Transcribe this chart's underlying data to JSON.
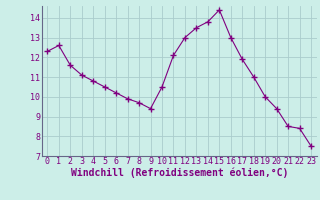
{
  "x": [
    0,
    1,
    2,
    3,
    4,
    5,
    6,
    7,
    8,
    9,
    10,
    11,
    12,
    13,
    14,
    15,
    16,
    17,
    18,
    19,
    20,
    21,
    22,
    23
  ],
  "y": [
    12.3,
    12.6,
    11.6,
    11.1,
    10.8,
    10.5,
    10.2,
    9.9,
    9.7,
    9.4,
    10.5,
    12.1,
    13.0,
    13.5,
    13.8,
    14.4,
    13.0,
    11.9,
    11.0,
    10.0,
    9.4,
    8.5,
    8.4,
    7.5
  ],
  "line_color": "#800080",
  "marker": "+",
  "markersize": 4,
  "linewidth": 0.8,
  "bg_color": "#cceee8",
  "grid_color": "#aacccc",
  "xlabel": "Windchill (Refroidissement éolien,°C)",
  "ylim": [
    7,
    14.6
  ],
  "yticks": [
    7,
    8,
    9,
    10,
    11,
    12,
    13,
    14
  ],
  "xticks": [
    0,
    1,
    2,
    3,
    4,
    5,
    6,
    7,
    8,
    9,
    10,
    11,
    12,
    13,
    14,
    15,
    16,
    17,
    18,
    19,
    20,
    21,
    22,
    23
  ],
  "tick_color": "#800080",
  "label_color": "#800080",
  "xlabel_fontsize": 7,
  "tick_fontsize": 6,
  "markeredgewidth": 1.0
}
